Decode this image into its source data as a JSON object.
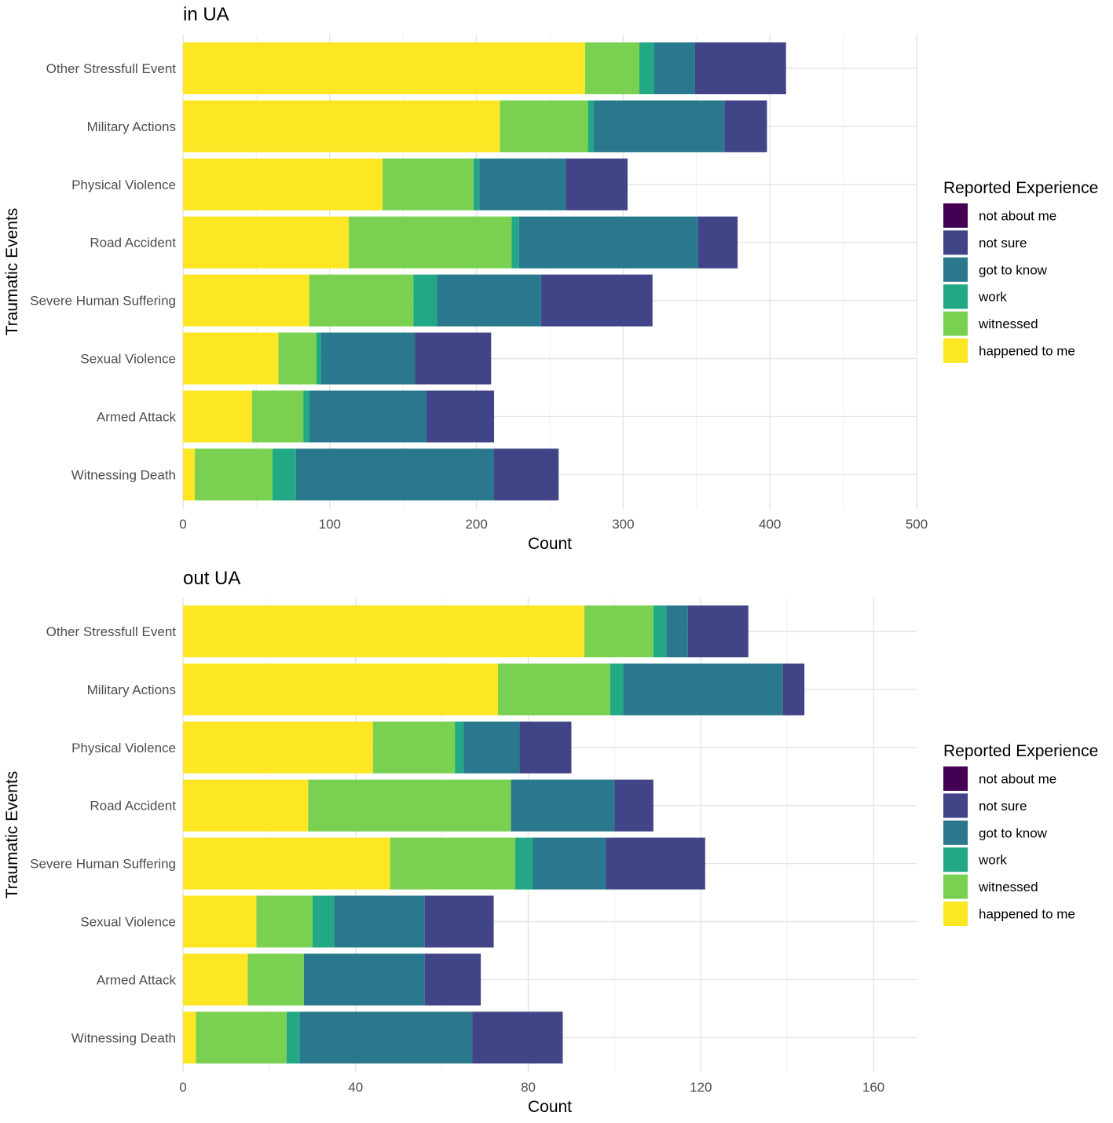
{
  "chart_data": [
    {
      "type": "bar",
      "orientation": "horizontal",
      "stacked": true,
      "title": "in UA",
      "xlabel": "Count",
      "ylabel": "Traumatic Events",
      "xlim": [
        0,
        500
      ],
      "xticks": [
        0,
        100,
        200,
        300,
        400,
        500
      ],
      "grid": true,
      "legend_title": "Reported Experience",
      "legend_position": "right",
      "categories": [
        "Other Stressfull Event",
        "Military Actions",
        "Physical Violence",
        "Road Accident",
        "Severe Human Suffering",
        "Sexual Violence",
        "Armed Attack",
        "Witnessing Death"
      ],
      "series": [
        {
          "name": "happened to me",
          "color": "#FDE725",
          "values": [
            274,
            216,
            136,
            113,
            86,
            65,
            47,
            8
          ]
        },
        {
          "name": "witnessed",
          "color": "#7AD151",
          "values": [
            37,
            60,
            62,
            111,
            71,
            26,
            35,
            53
          ]
        },
        {
          "name": "work",
          "color": "#22A884",
          "values": [
            10,
            4,
            4,
            5,
            16,
            3,
            4,
            16
          ]
        },
        {
          "name": "got to know",
          "color": "#2A788E",
          "values": [
            28,
            89,
            59,
            122,
            71,
            64,
            80,
            135
          ]
        },
        {
          "name": "not sure",
          "color": "#414487",
          "values": [
            62,
            29,
            42,
            27,
            76,
            52,
            46,
            44
          ]
        },
        {
          "name": "not about me",
          "color": "#440154",
          "values": [
            0,
            0,
            0,
            0,
            0,
            0,
            0,
            0
          ]
        }
      ]
    },
    {
      "type": "bar",
      "orientation": "horizontal",
      "stacked": true,
      "title": "out UA",
      "xlabel": "Count",
      "ylabel": "Traumatic Events",
      "xlim": [
        0,
        170
      ],
      "xticks": [
        0,
        40,
        80,
        120,
        160
      ],
      "grid": true,
      "legend_title": "Reported Experience",
      "legend_position": "right",
      "categories": [
        "Other Stressfull Event",
        "Military Actions",
        "Physical Violence",
        "Road Accident",
        "Severe Human Suffering",
        "Sexual Violence",
        "Armed Attack",
        "Witnessing Death"
      ],
      "series": [
        {
          "name": "happened to me",
          "color": "#FDE725",
          "values": [
            93,
            73,
            44,
            29,
            48,
            17,
            15,
            3
          ]
        },
        {
          "name": "witnessed",
          "color": "#7AD151",
          "values": [
            16,
            26,
            19,
            47,
            29,
            13,
            13,
            21
          ]
        },
        {
          "name": "work",
          "color": "#22A884",
          "values": [
            3,
            3,
            2,
            0,
            4,
            5,
            0,
            3
          ]
        },
        {
          "name": "got to know",
          "color": "#2A788E",
          "values": [
            5,
            37,
            13,
            24,
            17,
            21,
            28,
            40
          ]
        },
        {
          "name": "not sure",
          "color": "#414487",
          "values": [
            14,
            5,
            12,
            9,
            23,
            16,
            13,
            21
          ]
        },
        {
          "name": "not about me",
          "color": "#440154",
          "values": [
            0,
            0,
            0,
            0,
            0,
            0,
            0,
            0
          ]
        }
      ]
    }
  ]
}
